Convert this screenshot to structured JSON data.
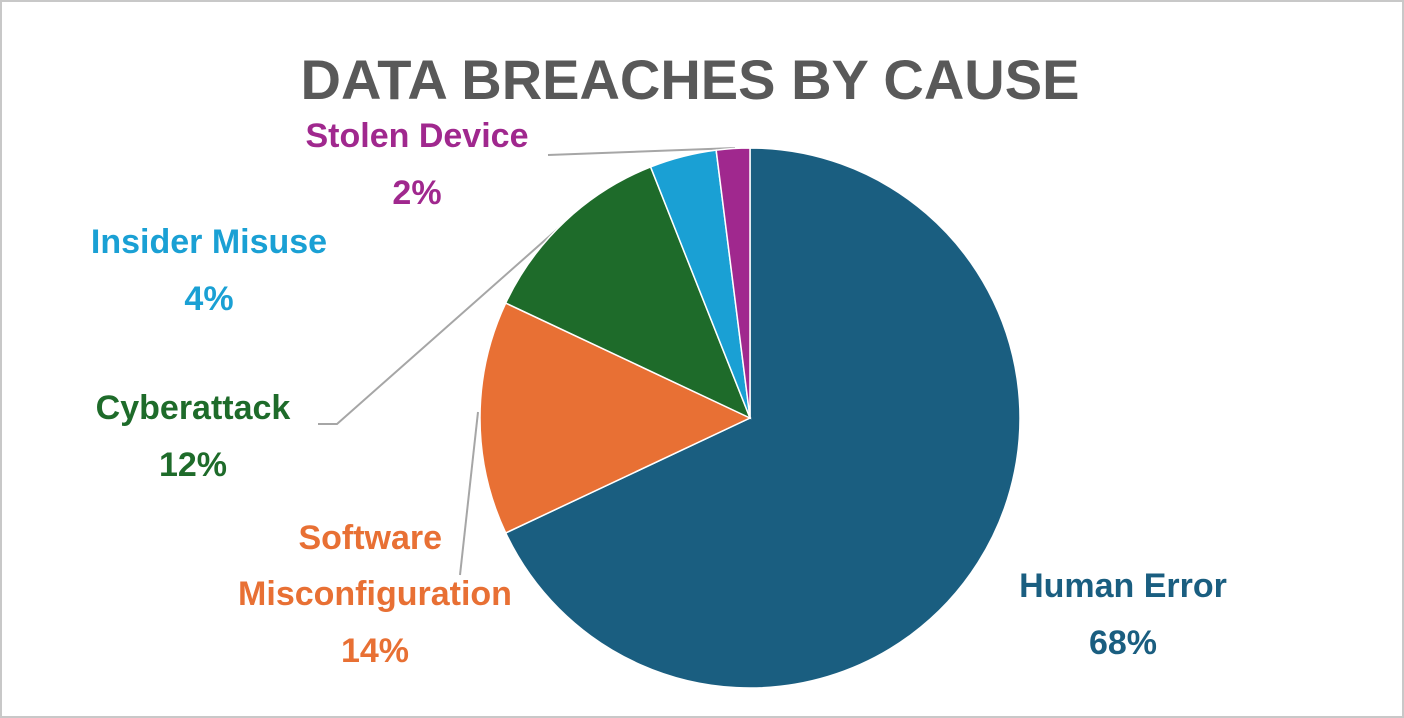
{
  "chart_data": {
    "type": "pie",
    "title": "DATA BREACHES BY CAUSE",
    "categories": [
      "Human Error",
      "Software Misconfiguration",
      "Cyberattack",
      "Insider Misuse",
      "Stolen Device"
    ],
    "values": [
      68,
      14,
      12,
      4,
      2
    ],
    "value_labels": [
      "68%",
      "14%",
      "12%",
      "4%",
      "2%"
    ],
    "colors": [
      "#1a5e80",
      "#e87034",
      "#1e6b2a",
      "#1aa0d4",
      "#a0288e"
    ]
  }
}
